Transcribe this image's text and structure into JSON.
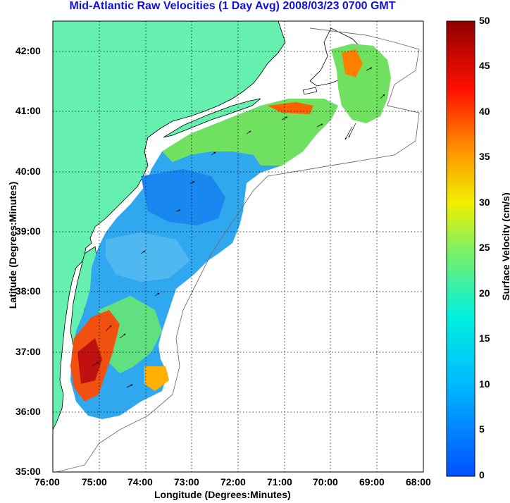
{
  "title": "Mid-Atlantic Raw Velocities (1 Day Avg) 2008/03/23 0700 GMT",
  "xlabel": "Longitude (Degrees:Minutes)",
  "ylabel": "Latitude (Degrees:Minutes)",
  "colorbar_label": "Surface Velocity (cm/s)",
  "x_ticks": [
    "76:00",
    "75:00",
    "74:00",
    "73:00",
    "72:00",
    "71:00",
    "70:00",
    "69:00",
    "68:00"
  ],
  "y_ticks": [
    "42:00",
    "41:00",
    "40:00",
    "39:00",
    "38:00",
    "37:00",
    "36:00",
    "35:00"
  ],
  "colorbar_ticks": [
    "50",
    "45",
    "40",
    "35",
    "30",
    "25",
    "20",
    "15",
    "10",
    "5",
    "0"
  ],
  "colors": {
    "land": "#66f0b0",
    "title": "#1010e0"
  },
  "chart_data": {
    "type": "heatmap",
    "xlim": [
      -76,
      -68
    ],
    "ylim": [
      35,
      42.5
    ],
    "clim": [
      0,
      50
    ]
  }
}
